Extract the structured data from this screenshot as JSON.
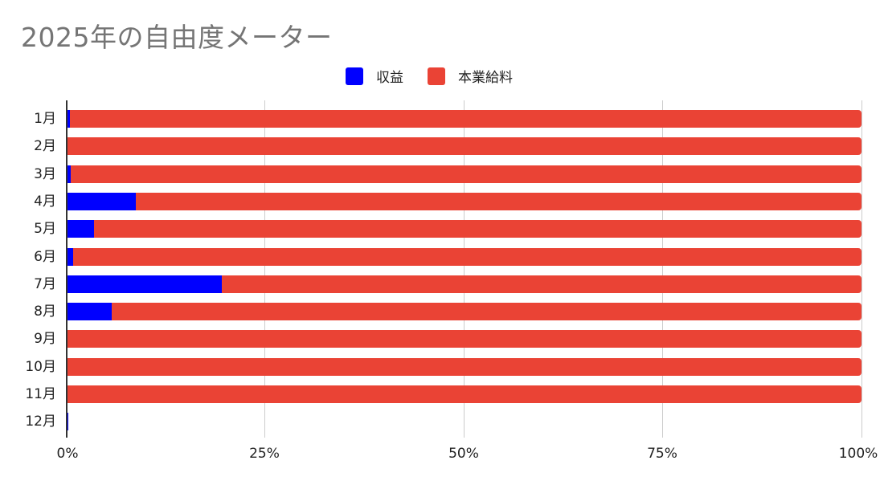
{
  "title": "2025年の自由度メーター",
  "legend": [
    {
      "label": "収益",
      "color": "#0000FF"
    },
    {
      "label": "本業給料",
      "color": "#EA4335"
    }
  ],
  "x_ticks": [
    "0%",
    "25%",
    "50%",
    "75%",
    "100%"
  ],
  "chart_data": {
    "type": "bar",
    "orientation": "horizontal",
    "stacked": "percent",
    "title": "2025年の自由度メーター",
    "xlabel": "",
    "ylabel": "",
    "xlim": [
      0,
      100
    ],
    "x_tick_labels": [
      "0%",
      "25%",
      "50%",
      "75%",
      "100%"
    ],
    "grid": true,
    "legend_position": "top",
    "categories": [
      "1月",
      "2月",
      "3月",
      "4月",
      "5月",
      "6月",
      "7月",
      "8月",
      "9月",
      "10月",
      "11月",
      "12月"
    ],
    "series": [
      {
        "name": "収益",
        "color": "#0000FF",
        "values": [
          0.5,
          0,
          0.6,
          8.8,
          3.5,
          0.9,
          19.6,
          5.8,
          0,
          0,
          0,
          0.3
        ]
      },
      {
        "name": "本業給料",
        "color": "#EA4335",
        "values": [
          99.5,
          100,
          99.4,
          91.2,
          96.5,
          99.1,
          80.4,
          94.2,
          100,
          100,
          100,
          0
        ]
      }
    ]
  }
}
